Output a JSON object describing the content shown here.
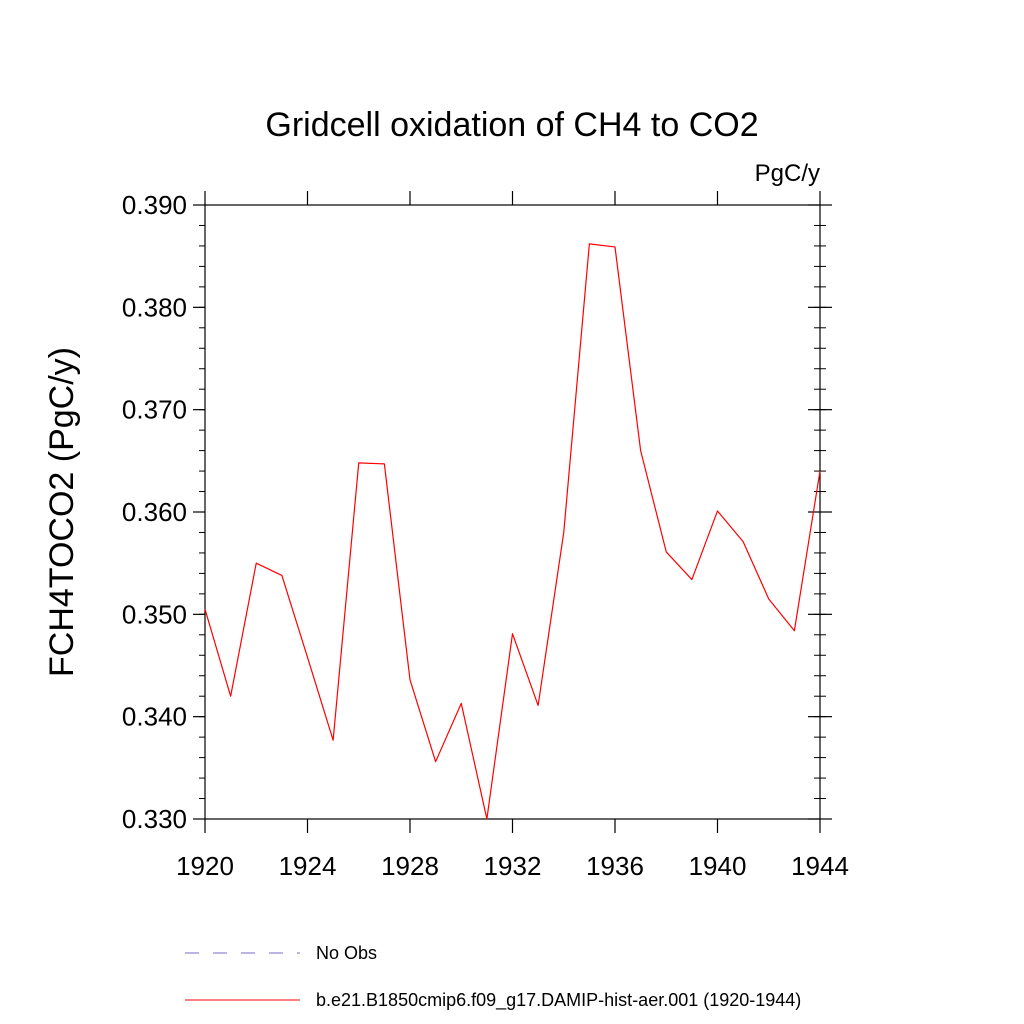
{
  "chart_data": {
    "type": "line",
    "title": "Gridcell oxidation of CH4 to CO2",
    "units": "PgC/y",
    "ylabel": "FCH4TOCO2  (PgC/y)",
    "xlabel": "",
    "xlim": [
      1920,
      1944
    ],
    "ylim": [
      0.33,
      0.39
    ],
    "x_ticks": [
      "1920",
      "1924",
      "1928",
      "1932",
      "1936",
      "1940",
      "1944"
    ],
    "y_ticks": [
      "0.330",
      "0.340",
      "0.350",
      "0.360",
      "0.370",
      "0.380",
      "0.390"
    ],
    "x": [
      1920,
      1921,
      1922,
      1923,
      1924,
      1925,
      1926,
      1927,
      1928,
      1929,
      1930,
      1931,
      1932,
      1933,
      1934,
      1935,
      1936,
      1937,
      1938,
      1939,
      1940,
      1941,
      1942,
      1943,
      1944
    ],
    "series": [
      {
        "name": "b.e21.B1850cmip6.f09_g17.DAMIP-hist-aer.001 (1920-1944)",
        "color": "#ff0000",
        "values": [
          0.3505,
          0.342,
          0.355,
          0.3538,
          0.3458,
          0.3377,
          0.3648,
          0.3647,
          0.3436,
          0.3356,
          0.3413,
          0.33,
          0.3481,
          0.3411,
          0.358,
          0.3862,
          0.3859,
          0.366,
          0.3561,
          0.3534,
          0.3601,
          0.3571,
          0.3515,
          0.3484,
          0.364
        ]
      }
    ],
    "legend": {
      "placement": "bottom",
      "entries": [
        {
          "label": "No Obs",
          "color": "#7b68c8",
          "style": "dashed"
        },
        {
          "label": "b.e21.B1850cmip6.f09_g17.DAMIP-hist-aer.001 (1920-1944)",
          "color": "#ff0000",
          "style": "solid"
        }
      ]
    }
  }
}
